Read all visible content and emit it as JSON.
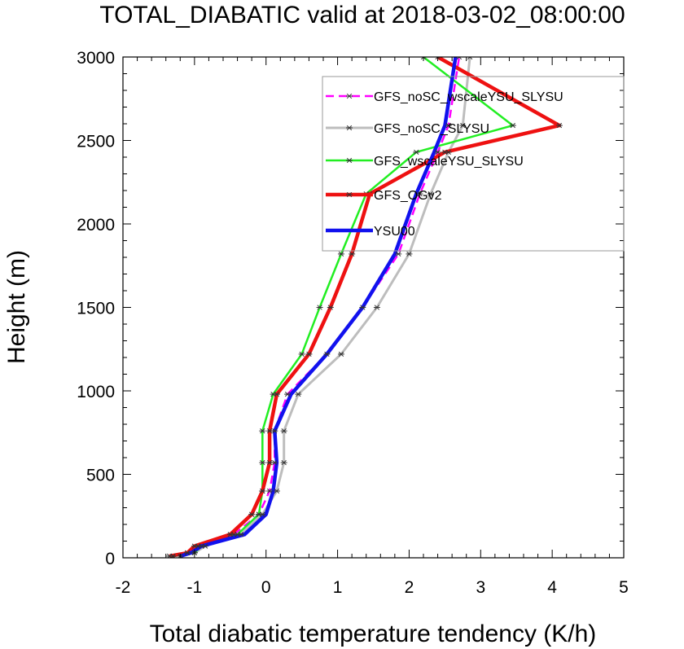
{
  "chart_data": {
    "type": "line",
    "title": "TOTAL_DIABATIC valid at 2018-03-02_08:00:00",
    "xlabel": "Total diabatic temperature tendency (K/h)",
    "ylabel": "Height (m)",
    "xlim": [
      -2,
      5
    ],
    "ylim": [
      0,
      3000
    ],
    "xticks": [
      -2,
      -1,
      0,
      1,
      2,
      3,
      4,
      5
    ],
    "yticks": [
      0,
      500,
      1000,
      1500,
      2000,
      2500,
      3000
    ],
    "grid": false,
    "legend_position": "top-right",
    "series": [
      {
        "name": "GFS_noSC_wscaleYSU_SLYSU",
        "color": "#ff00ff",
        "dash": true,
        "width": 2.5,
        "markers": true,
        "x": [
          -1.3,
          -1.1,
          -0.95,
          -0.45,
          -0.1,
          0.05,
          0.12,
          0.12,
          0.3,
          0.85,
          1.35,
          1.85,
          2.15,
          2.4,
          2.55,
          2.7
        ],
        "y": [
          10,
          30,
          70,
          140,
          260,
          400,
          570,
          760,
          980,
          1220,
          1500,
          1820,
          2180,
          2430,
          2590,
          3000
        ]
      },
      {
        "name": "GFS_noSC_SLYSU",
        "color": "#bdbdbd",
        "dash": false,
        "width": 3,
        "markers": true,
        "x": [
          -1.2,
          -1.0,
          -0.85,
          -0.35,
          -0.05,
          0.15,
          0.25,
          0.25,
          0.45,
          1.05,
          1.55,
          2.0,
          2.3,
          2.55,
          2.75,
          2.85
        ],
        "y": [
          10,
          30,
          70,
          140,
          260,
          400,
          570,
          760,
          980,
          1220,
          1500,
          1820,
          2180,
          2430,
          2590,
          3000
        ]
      },
      {
        "name": "GFS_wscaleYSU_SLYSU",
        "color": "#22ee22",
        "dash": false,
        "width": 2.5,
        "markers": true,
        "x": [
          -1.3,
          -1.0,
          -0.9,
          -0.4,
          -0.1,
          -0.05,
          -0.05,
          -0.05,
          0.1,
          0.5,
          0.75,
          1.05,
          1.4,
          2.1,
          3.45,
          2.2
        ],
        "y": [
          10,
          30,
          70,
          140,
          260,
          400,
          570,
          760,
          980,
          1220,
          1500,
          1820,
          2180,
          2430,
          2590,
          3000
        ]
      },
      {
        "name": "GFS_OGv2",
        "color": "#ee1111",
        "dash": false,
        "width": 4.5,
        "markers": true,
        "x": [
          -1.35,
          -1.1,
          -1.0,
          -0.5,
          -0.2,
          -0.05,
          0.05,
          0.05,
          0.15,
          0.6,
          0.9,
          1.2,
          1.45,
          2.5,
          4.1,
          2.4
        ],
        "y": [
          10,
          30,
          70,
          140,
          260,
          400,
          570,
          760,
          980,
          1220,
          1500,
          1820,
          2180,
          2430,
          2590,
          3000
        ]
      },
      {
        "name": "YSU00",
        "color": "#1111ee",
        "dash": false,
        "width": 4.5,
        "markers": false,
        "x": [
          -1.2,
          -1.05,
          -0.9,
          -0.3,
          0.0,
          0.1,
          0.15,
          0.12,
          0.35,
          0.85,
          1.35,
          1.8,
          2.1,
          2.35,
          2.5,
          2.65
        ],
        "y": [
          10,
          30,
          70,
          140,
          260,
          400,
          570,
          760,
          980,
          1220,
          1500,
          1820,
          2180,
          2430,
          2590,
          3000
        ]
      }
    ]
  }
}
